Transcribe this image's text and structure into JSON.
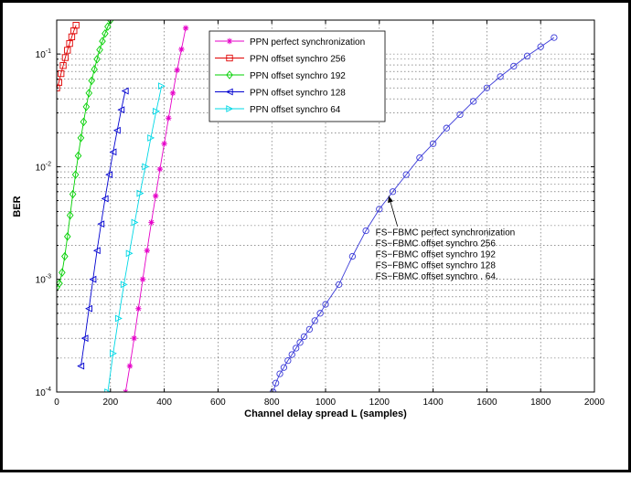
{
  "chart_data": {
    "type": "line",
    "xlabel": "Channel delay spread L (samples)",
    "ylabel": "BER",
    "xlim": [
      0,
      2000
    ],
    "ylim": [
      0.0001,
      0.2
    ],
    "yscale": "log",
    "grid": true,
    "x_ticks": [
      "0",
      "200",
      "400",
      "600",
      "800",
      "1000",
      "1200",
      "1400",
      "1600",
      "1800",
      "2000"
    ],
    "y_ticks": [
      {
        "value": 0.0001,
        "base": "10",
        "exp": "-4"
      },
      {
        "value": 0.001,
        "base": "10",
        "exp": "-3"
      },
      {
        "value": 0.01,
        "base": "10",
        "exp": "-2"
      },
      {
        "value": 0.1,
        "base": "10",
        "exp": "-1"
      }
    ],
    "legend_position": "top-center",
    "series": [
      {
        "name": "PPN perfect synchronization",
        "color": "#e600c8",
        "marker": "star",
        "x": [
          256,
          272,
          288,
          304,
          320,
          336,
          352,
          368,
          384,
          400,
          416,
          432,
          448,
          464,
          480
        ],
        "y": [
          0.0001,
          0.00017,
          0.0003,
          0.00055,
          0.001,
          0.0018,
          0.0032,
          0.0055,
          0.0095,
          0.016,
          0.027,
          0.045,
          0.072,
          0.11,
          0.17
        ]
      },
      {
        "name": "PPN offset synchro 256",
        "color": "#e00000",
        "marker": "square",
        "x": [
          0,
          8,
          16,
          24,
          32,
          40,
          48,
          56,
          64,
          72
        ],
        "y": [
          0.05,
          0.056,
          0.067,
          0.079,
          0.093,
          0.108,
          0.124,
          0.142,
          0.161,
          0.18
        ]
      },
      {
        "name": "PPN offset synchro 192",
        "color": "#00d000",
        "marker": "diamond",
        "x": [
          0,
          10,
          20,
          30,
          40,
          50,
          60,
          70,
          80,
          90,
          100,
          110,
          120,
          130,
          140,
          150,
          160,
          170,
          180,
          190,
          200
        ],
        "y": [
          0.00085,
          0.00092,
          0.00115,
          0.0016,
          0.0024,
          0.0037,
          0.0057,
          0.0085,
          0.0125,
          0.018,
          0.025,
          0.034,
          0.045,
          0.058,
          0.073,
          0.09,
          0.109,
          0.13,
          0.152,
          0.175,
          0.2
        ]
      },
      {
        "name": "PPN offset synchro 128",
        "color": "#0000d0",
        "marker": "triangle-left",
        "x": [
          90,
          105,
          120,
          135,
          150,
          165,
          180,
          195,
          210,
          225,
          240,
          255
        ],
        "y": [
          0.00017,
          0.0003,
          0.00055,
          0.001,
          0.0018,
          0.0031,
          0.0052,
          0.0085,
          0.0135,
          0.021,
          0.032,
          0.047
        ]
      },
      {
        "name": "PPN offset synchro 64",
        "color": "#00d8e6",
        "marker": "triangle-right",
        "x": [
          190,
          210,
          230,
          250,
          270,
          290,
          310,
          330,
          350,
          370,
          390
        ],
        "y": [
          0.0001,
          0.00022,
          0.00045,
          0.0009,
          0.0017,
          0.0032,
          0.0058,
          0.01,
          0.018,
          0.031,
          0.052
        ]
      },
      {
        "name": "FS-FBMC perfect synchronization",
        "color": "#3b3bd8",
        "marker": "circle",
        "x": [
          805,
          815,
          830,
          845,
          860,
          875,
          890,
          905,
          920,
          940,
          960,
          980,
          1000,
          1050,
          1100,
          1150,
          1200,
          1250,
          1300,
          1350,
          1400,
          1450,
          1500,
          1550,
          1600,
          1650,
          1700,
          1750,
          1800,
          1850
        ],
        "y": [
          0.0001,
          0.00012,
          0.000145,
          0.000165,
          0.00019,
          0.000215,
          0.000245,
          0.000275,
          0.00031,
          0.00036,
          0.00043,
          0.0005,
          0.0006,
          0.0009,
          0.0016,
          0.0027,
          0.0042,
          0.006,
          0.0085,
          0.012,
          0.016,
          0.022,
          0.029,
          0.038,
          0.05,
          0.063,
          0.078,
          0.096,
          0.116,
          0.14
        ]
      }
    ],
    "annotation": {
      "lines": [
        "FS−FBMC perfect synchronization",
        "FS−FBMC offset synchro 256",
        "FS−FBMC offset synchro 192",
        "FS−FBMC offset synchro 128",
        "FS−FBMC offset synchro . 64."
      ],
      "arrow_to": {
        "x": 1235,
        "y": 0.0055
      },
      "text_anchor": {
        "x": 1390,
        "y": 0.00175
      }
    }
  }
}
